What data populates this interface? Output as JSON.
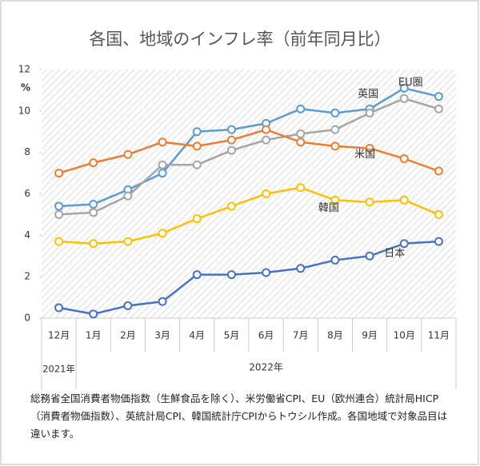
{
  "chart_data": {
    "type": "line",
    "title": "各国、地域のインフレ率（前年同月比）",
    "y_unit": "%",
    "categories": [
      "12月",
      "1月",
      "2月",
      "3月",
      "4月",
      "5月",
      "6月",
      "7月",
      "8月",
      "9月",
      "10月",
      "11月"
    ],
    "category_groups": [
      "2021年",
      "2022年"
    ],
    "series": [
      {
        "name": "英国",
        "color": "#5b9bd5",
        "values": [
          5.4,
          5.5,
          6.2,
          7.0,
          9.0,
          9.1,
          9.4,
          10.1,
          9.9,
          10.1,
          11.1,
          10.7
        ]
      },
      {
        "name": "EU圏",
        "color": "#a5a5a5",
        "values": [
          5.0,
          5.1,
          5.9,
          7.4,
          7.4,
          8.1,
          8.6,
          8.9,
          9.1,
          9.9,
          10.6,
          10.1
        ]
      },
      {
        "name": "米国",
        "color": "#ed7d31",
        "values": [
          7.0,
          7.5,
          7.9,
          8.5,
          8.3,
          8.6,
          9.1,
          8.5,
          8.3,
          8.2,
          7.7,
          7.1
        ]
      },
      {
        "name": "韓国",
        "color": "#ffc000",
        "values": [
          3.7,
          3.6,
          3.7,
          4.1,
          4.8,
          5.4,
          6.0,
          6.3,
          5.7,
          5.6,
          5.7,
          5.0
        ]
      },
      {
        "name": "日本",
        "color": "#4472c4",
        "values": [
          0.5,
          0.2,
          0.6,
          0.8,
          2.1,
          2.1,
          2.2,
          2.4,
          2.8,
          3.0,
          3.6,
          3.7
        ]
      }
    ],
    "ylim": [
      0,
      12
    ],
    "yticks": [
      0,
      2,
      4,
      6,
      8,
      10,
      12
    ],
    "note": "総務省全国消費者物価指数（生鮮食品を除く）、米労働省CPI、EU（欧州連合）統計局HICP（消費者物価指数）、英統計局CPI、韓国統計庁CPIからトウシル作成。各国地域で対象品目は違います。"
  }
}
